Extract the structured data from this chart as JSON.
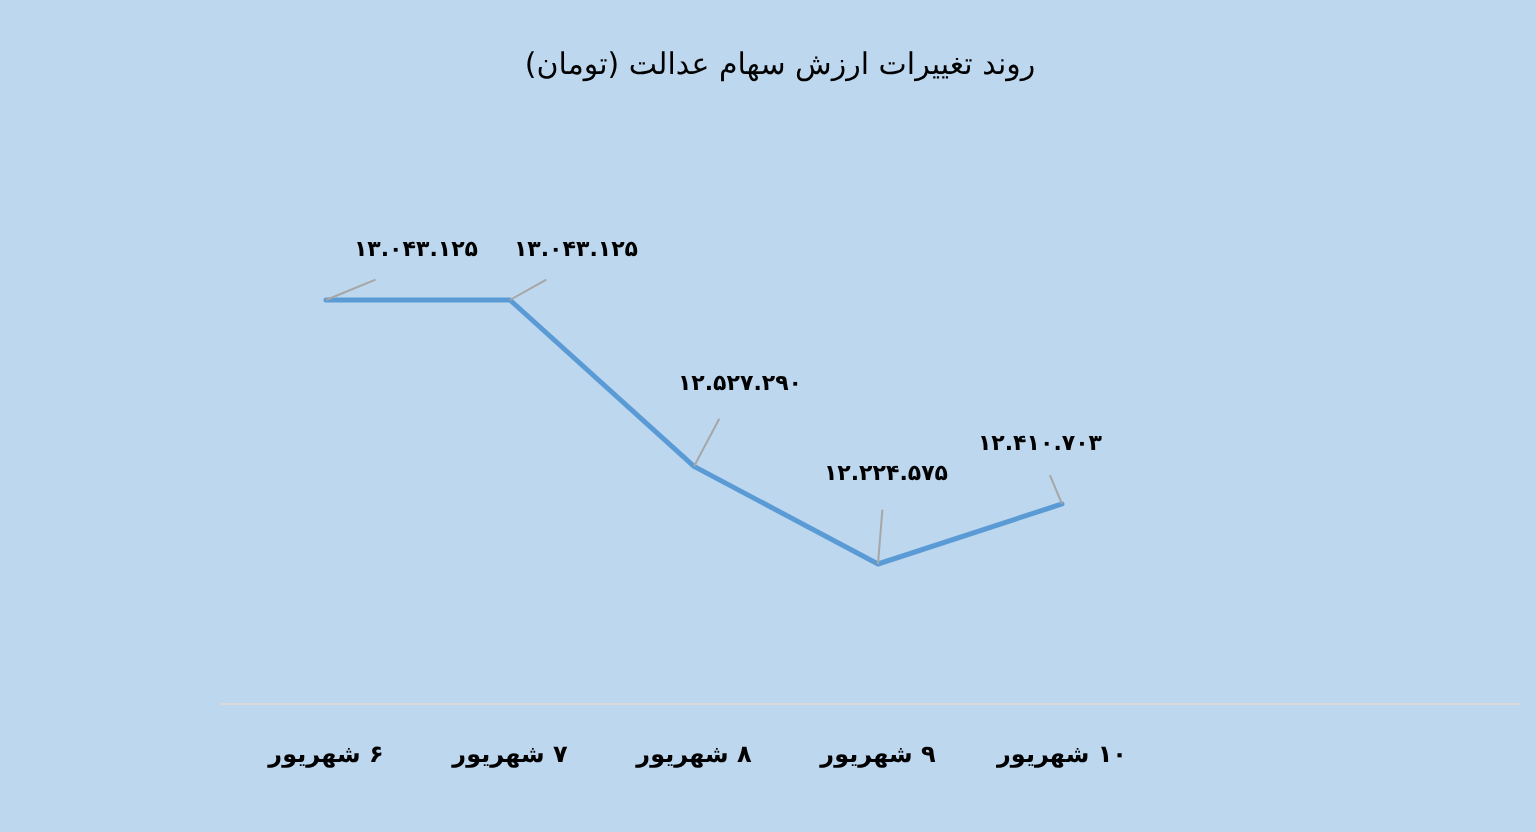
{
  "chart_data": {
    "type": "line",
    "title": "روند تغییرات ارزش سهام عدالت (تومان)",
    "categories": [
      "۶ شهریور",
      "۷ شهریور",
      "۸ شهریور",
      "۹ شهریور",
      "۱۰ شهریور"
    ],
    "series": [
      {
        "color": "#5b9bd5",
        "values": [
          13043125,
          13043125,
          12527290,
          12224575,
          12410703
        ],
        "value_labels": [
          "۱۳.۰۴۳.۱۲۵",
          "۱۳.۰۴۳.۱۲۵",
          "۱۲.۵۲۷.۲۹۰",
          "۱۲.۲۲۴.۵۷۵",
          "۱۲.۴۱۰.۷۰۳"
        ]
      }
    ],
    "tick_labels": "x",
    "marker": "none",
    "line_style": "solid"
  }
}
